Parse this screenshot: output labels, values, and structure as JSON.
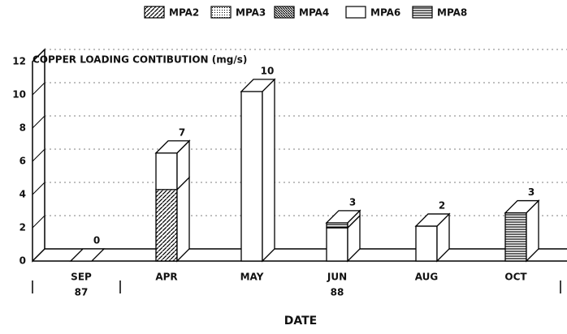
{
  "chart_data": {
    "type": "bar3d_stacked",
    "title": "COPPER LOADING CONTIBUTION (mg/s)",
    "x_label": "DATE",
    "categories": [
      [
        "SEP",
        "87"
      ],
      [
        "APR"
      ],
      [
        "MAY"
      ],
      [
        "JUN",
        "88"
      ],
      [
        "AUG"
      ],
      [
        "OCT"
      ]
    ],
    "series": [
      {
        "name": "MPA2",
        "color": "#000000",
        "pattern": "diagonal",
        "values": [
          0,
          4.3,
          0,
          0,
          0,
          0
        ]
      },
      {
        "name": "MPA3",
        "color": "#000000",
        "pattern": "dots",
        "values": [
          0,
          0,
          0,
          0,
          0,
          0
        ]
      },
      {
        "name": "MPA4",
        "color": "#000000",
        "pattern": "dense-diagonal",
        "values": [
          0,
          0,
          0,
          0,
          0,
          0
        ]
      },
      {
        "name": "MPA6",
        "color": "#000000",
        "pattern": "none",
        "values": [
          0,
          2.2,
          10.2,
          2.0,
          2.1,
          0
        ]
      },
      {
        "name": "MPA8",
        "color": "#000000",
        "pattern": "horizontal",
        "values": [
          0,
          0,
          0,
          0.3,
          0,
          2.9
        ]
      }
    ],
    "total_labels": [
      0,
      7,
      10,
      3,
      2,
      3
    ],
    "ylim": [
      0,
      12
    ],
    "yticks": [
      0,
      2,
      4,
      6,
      8,
      10,
      12
    ],
    "grid": true
  }
}
